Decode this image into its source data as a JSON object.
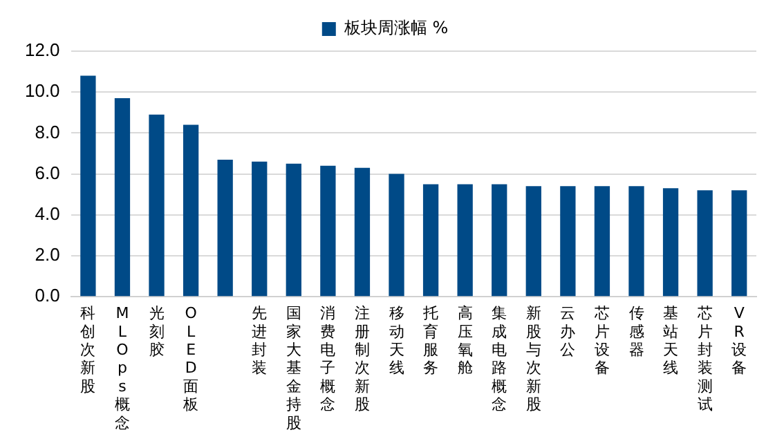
{
  "chart_data": {
    "type": "bar",
    "categories": [
      "科创次新股",
      "MLOps概念",
      "光刻胶",
      "OLED面板",
      null,
      "先进封装",
      "国家大基金持股",
      "消费电子概念",
      "注册制次新股",
      "移动天线",
      "托育服务",
      "高压氧舱",
      "集成电路概念",
      "新股与次新股",
      "云办公",
      "芯片设备",
      "传感器",
      "基站天线",
      "芯片封装测试",
      "VR设备"
    ],
    "series": [
      {
        "name": "板块周涨幅 %",
        "color": "#004a87",
        "values": [
          10.8,
          9.7,
          8.9,
          8.4,
          6.7,
          6.6,
          6.5,
          6.4,
          6.3,
          6.0,
          5.5,
          5.5,
          5.5,
          5.4,
          5.4,
          5.4,
          5.4,
          5.3,
          5.2,
          5.2
        ]
      }
    ],
    "ylim": [
      0,
      12
    ],
    "yticks": [
      {
        "value": 0,
        "label": "0.0"
      },
      {
        "value": 2,
        "label": "2.0"
      },
      {
        "value": 4,
        "label": "4.0"
      },
      {
        "value": 6,
        "label": "6.0"
      },
      {
        "value": 8,
        "label": "8.0"
      },
      {
        "value": 10,
        "label": "10.0"
      },
      {
        "value": 12,
        "label": "12.0"
      }
    ],
    "grid": "y",
    "legend": "top"
  }
}
